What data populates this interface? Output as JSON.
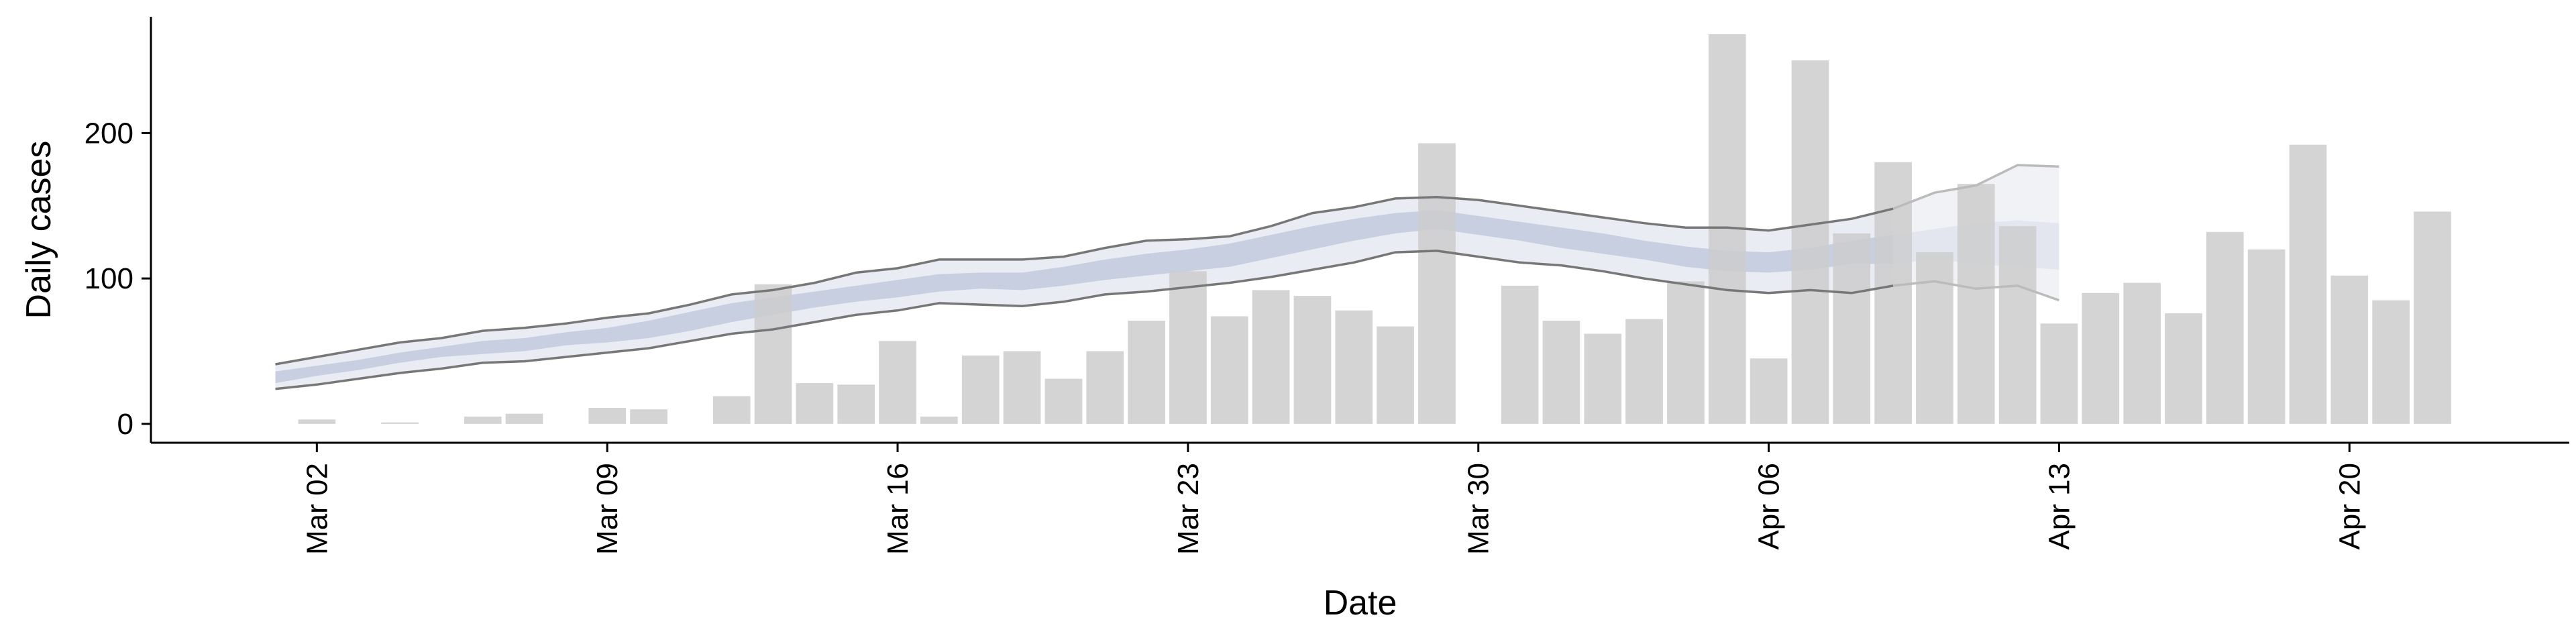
{
  "chart_data": {
    "type": "bar",
    "xlabel": "Date",
    "ylabel": "Daily cases",
    "x_tick_labels": [
      "Mar 02",
      "Mar 09",
      "Mar 16",
      "Mar 23",
      "Mar 30",
      "Apr 06",
      "Apr 13",
      "Apr 20"
    ],
    "y_tick_labels": [
      "0",
      "100",
      "200"
    ],
    "y_ticks": [
      0,
      100,
      200
    ],
    "x_tick_days": [
      2,
      9,
      16,
      23,
      30,
      37,
      44,
      51
    ],
    "xlim_days": [
      -2.0,
      56.3
    ],
    "ylim": [
      -13,
      280
    ],
    "grid": false,
    "colors": {
      "bars": "#cccccc",
      "outer_band": "#eaecf3",
      "inner_band": "#c8cfe0",
      "band_edge": "#777777",
      "forecast_band": "#f1f2f6",
      "forecast_edge": "#bbbbbb",
      "axis": "#000000"
    },
    "bars": {
      "name": "Daily cases",
      "days": [
        2,
        3,
        4,
        5,
        6,
        7,
        8,
        9,
        10,
        11,
        12,
        13,
        14,
        15,
        16,
        17,
        18,
        19,
        20,
        21,
        22,
        23,
        24,
        25,
        26,
        27,
        28,
        29,
        30,
        31,
        32,
        33,
        34,
        35,
        36,
        37,
        38,
        39,
        40,
        41,
        42,
        43,
        44,
        45,
        46,
        47,
        48,
        49,
        50,
        51,
        52,
        53
      ],
      "values": [
        3,
        0,
        1,
        0,
        5,
        7,
        0,
        11,
        10,
        0,
        19,
        96,
        28,
        27,
        57,
        5,
        47,
        50,
        31,
        50,
        71,
        105,
        74,
        92,
        88,
        78,
        67,
        193,
        0,
        95,
        71,
        62,
        72,
        98,
        268,
        45,
        250,
        131,
        180,
        118,
        165,
        136,
        69,
        90,
        97,
        76,
        132,
        120,
        192,
        102,
        85,
        146
      ]
    },
    "estimate": {
      "days": [
        1,
        2,
        3,
        4,
        5,
        6,
        7,
        8,
        9,
        10,
        11,
        12,
        13,
        14,
        15,
        16,
        17,
        18,
        19,
        20,
        21,
        22,
        23,
        24,
        25,
        26,
        27,
        28,
        29,
        30,
        31,
        32,
        33,
        34,
        35,
        36,
        37,
        38,
        39,
        40,
        41,
        42,
        43,
        44
      ],
      "lower_90": [
        24,
        27,
        31,
        35,
        38,
        42,
        43,
        46,
        49,
        52,
        57,
        62,
        65,
        70,
        75,
        78,
        83,
        82,
        81,
        84,
        89,
        91,
        94,
        97,
        101,
        106,
        111,
        118,
        119,
        115,
        111,
        109,
        105,
        100,
        96,
        92,
        90,
        92,
        90,
        95,
        98,
        93,
        95,
        85
      ],
      "lower_50": [
        28,
        33,
        37,
        42,
        46,
        48,
        50,
        54,
        56,
        59,
        64,
        70,
        75,
        80,
        84,
        87,
        91,
        93,
        92,
        95,
        99,
        102,
        105,
        108,
        114,
        120,
        126,
        131,
        134,
        130,
        126,
        121,
        117,
        113,
        108,
        105,
        104,
        106,
        110,
        110,
        113,
        110,
        108,
        106
      ],
      "upper_50": [
        36,
        40,
        44,
        49,
        53,
        57,
        59,
        63,
        66,
        71,
        77,
        83,
        87,
        91,
        95,
        99,
        103,
        104,
        104,
        108,
        113,
        117,
        120,
        124,
        130,
        136,
        141,
        145,
        147,
        143,
        139,
        135,
        131,
        126,
        122,
        119,
        118,
        121,
        126,
        130,
        134,
        138,
        140,
        138
      ],
      "upper_90": [
        41,
        46,
        51,
        56,
        59,
        64,
        66,
        69,
        73,
        76,
        82,
        89,
        92,
        97,
        104,
        107,
        113,
        113,
        113,
        115,
        121,
        126,
        127,
        129,
        136,
        145,
        149,
        155,
        156,
        154,
        150,
        146,
        142,
        138,
        135,
        135,
        133,
        137,
        141,
        148,
        159,
        164,
        178,
        177
      ]
    },
    "forecast_start_day": 40
  }
}
